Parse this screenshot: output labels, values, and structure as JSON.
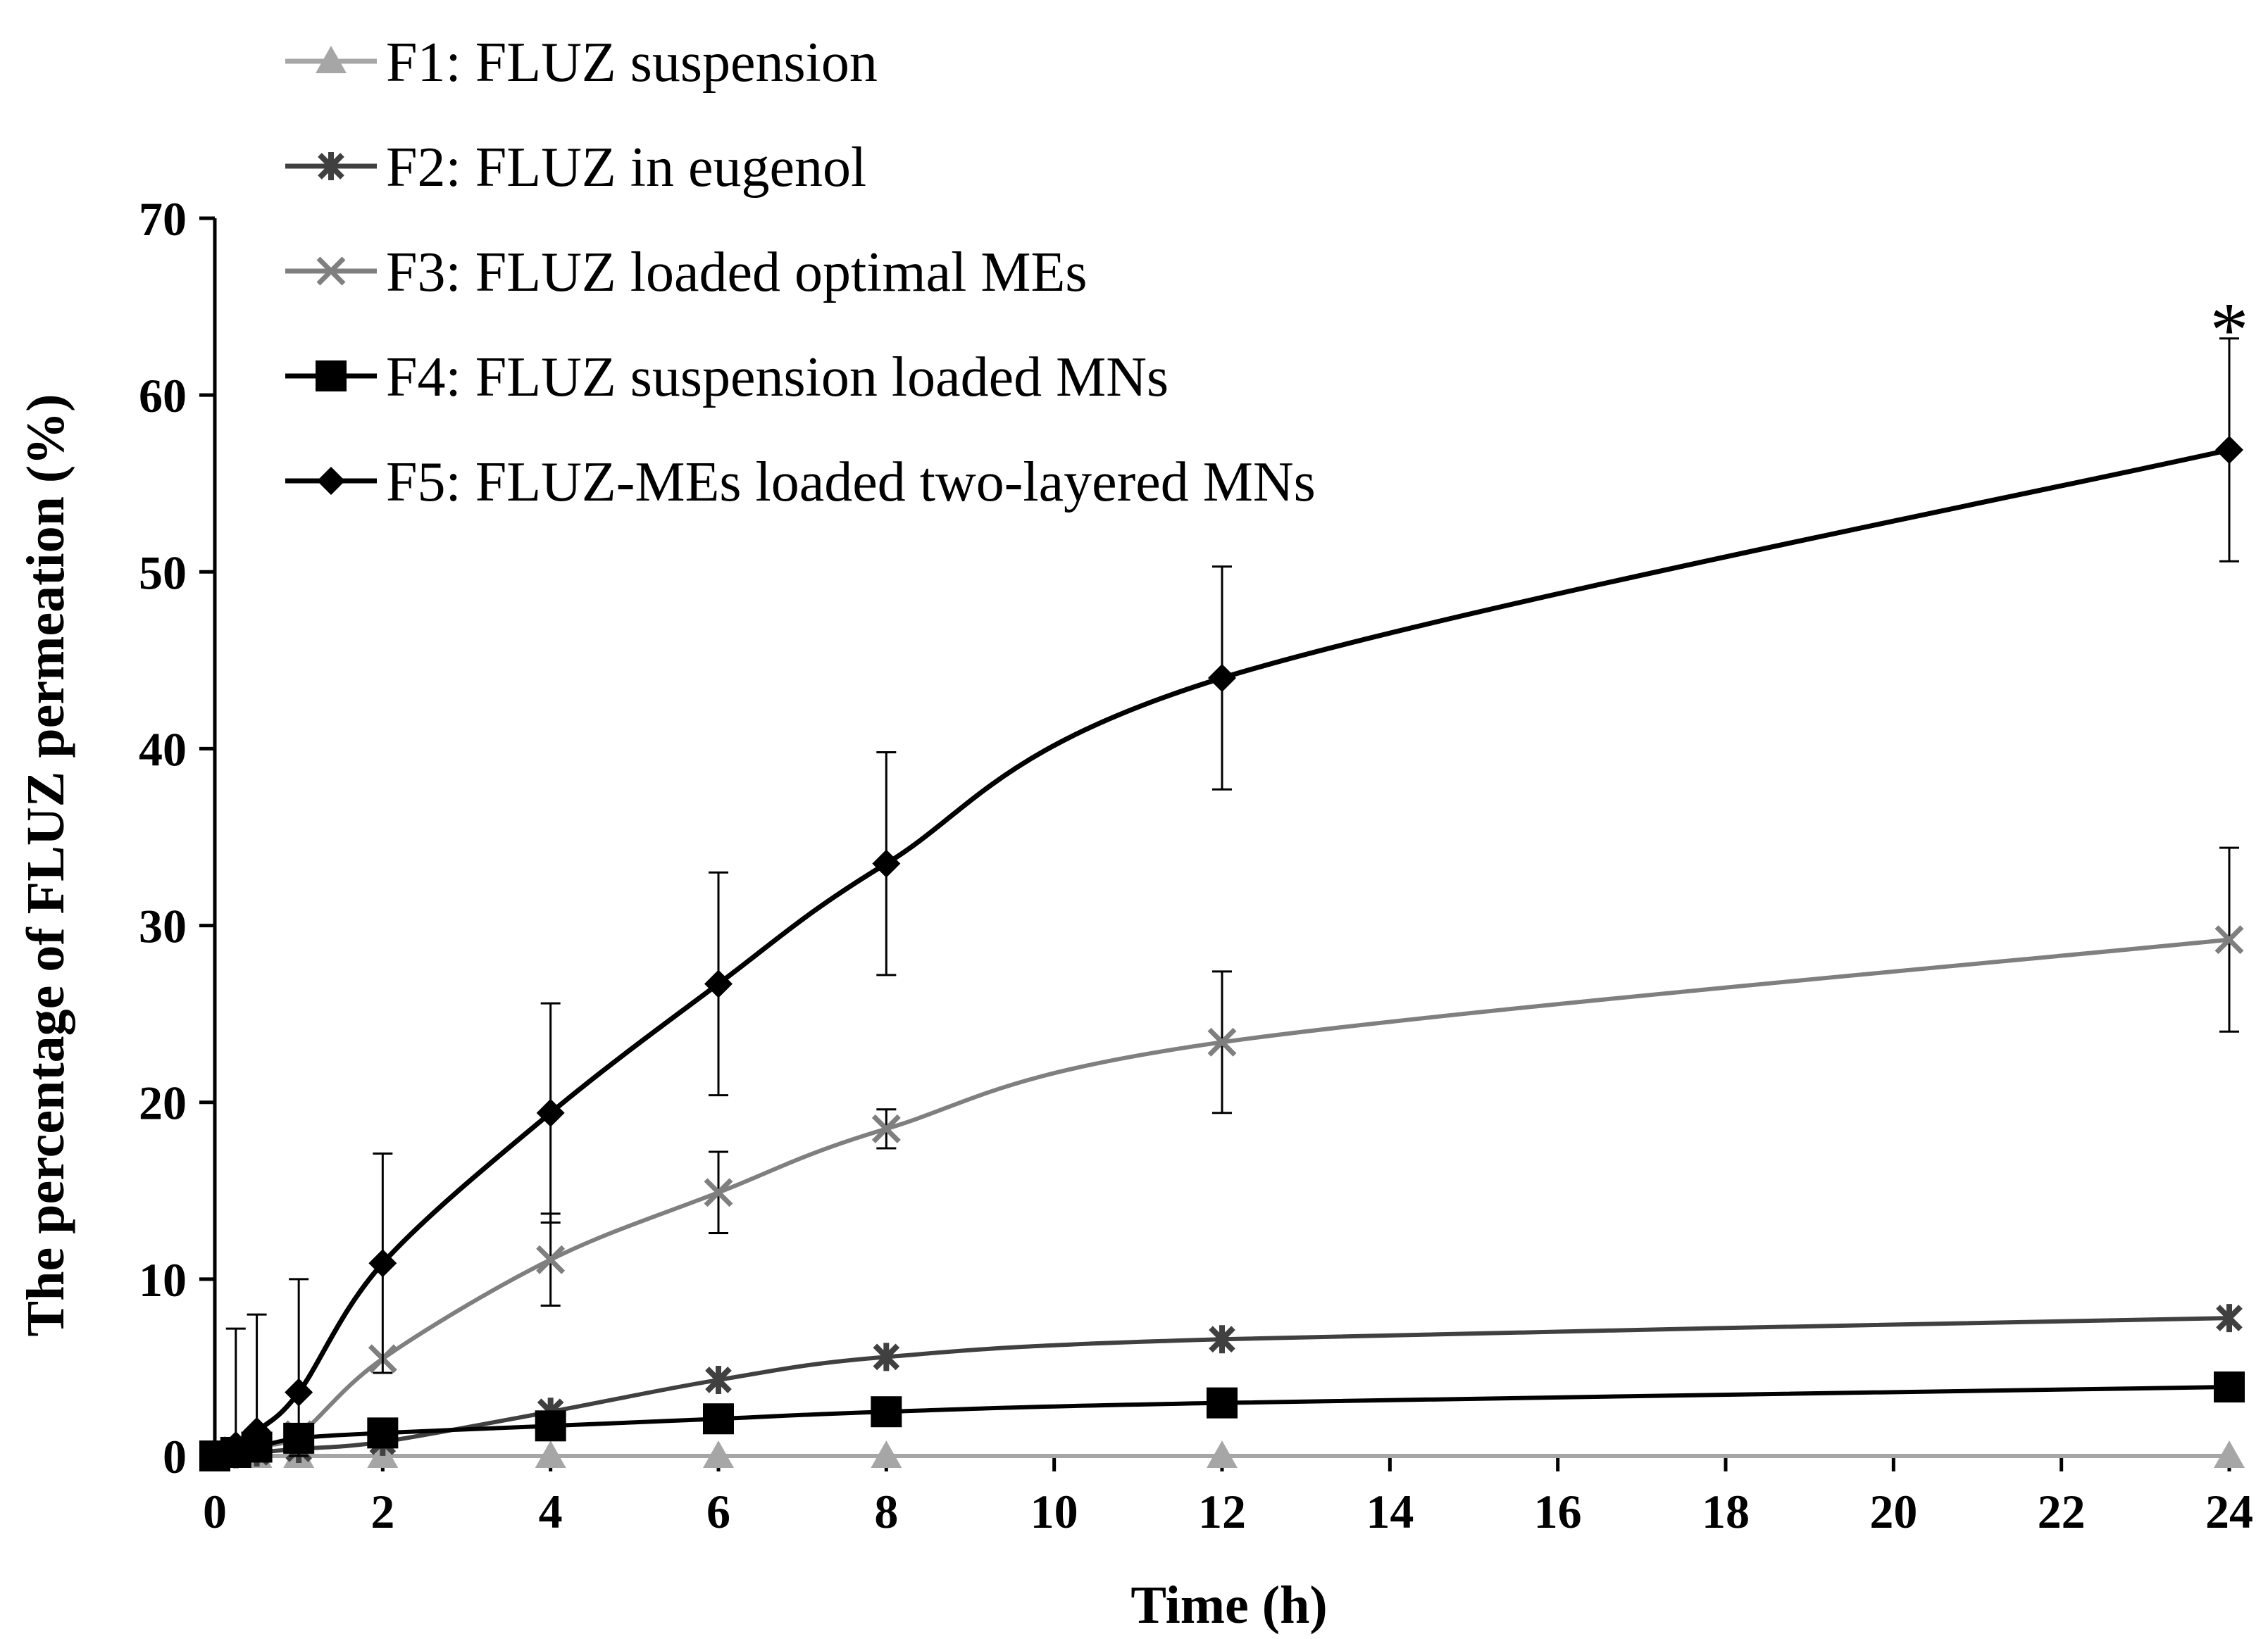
{
  "chart_data": {
    "type": "line",
    "xlabel": "Time (h)",
    "ylabel": "The percentage of FLUZ  permeation (%)",
    "xlim": [
      0,
      24
    ],
    "ylim": [
      0,
      70
    ],
    "xticks": [
      0,
      2,
      4,
      6,
      8,
      10,
      12,
      14,
      16,
      18,
      20,
      22,
      24
    ],
    "yticks": [
      0,
      10,
      20,
      30,
      40,
      50,
      60,
      70
    ],
    "grid": false,
    "legend_position": "top-left",
    "annotations": [
      {
        "text": "*",
        "x": 24,
        "y": 65
      }
    ],
    "series": [
      {
        "name": "F1: FLUZ suspension",
        "color": "#a6a6a6",
        "marker": "triangle",
        "x": [
          0,
          0.25,
          0.5,
          1,
          2,
          4,
          6,
          8,
          12,
          24
        ],
        "values": [
          0,
          0,
          0,
          0,
          0,
          0,
          0,
          0,
          0,
          0
        ],
        "errors": [
          0,
          0,
          0,
          0,
          0,
          0,
          0,
          0,
          0,
          0
        ]
      },
      {
        "name": "F2: FLUZ in eugenol",
        "color": "#404040",
        "marker": "star",
        "x": [
          0,
          0.25,
          0.5,
          1,
          2,
          4,
          6,
          8,
          12,
          24
        ],
        "values": [
          0,
          0.1,
          0.2,
          0.4,
          0.8,
          2.5,
          4.3,
          5.6,
          6.6,
          7.8
        ],
        "errors": [
          0,
          0,
          0,
          0,
          0,
          0,
          0,
          0,
          0,
          0
        ]
      },
      {
        "name": "F3: FLUZ loaded optimal MEs",
        "color": "#7f7f7f",
        "marker": "x",
        "x": [
          0,
          0.25,
          0.5,
          1,
          2,
          4,
          6,
          8,
          12,
          24
        ],
        "values": [
          0,
          0.3,
          0.6,
          1.2,
          5.5,
          11.1,
          14.9,
          18.5,
          23.4,
          29.2
        ],
        "errors": [
          0,
          0,
          0,
          0,
          0,
          2.6,
          2.3,
          1.1,
          4.0,
          5.2
        ]
      },
      {
        "name": "F4: FLUZ suspension loaded MNs",
        "color": "#000000",
        "marker": "square",
        "x": [
          0,
          0.25,
          0.5,
          1,
          2,
          4,
          6,
          8,
          12,
          24
        ],
        "values": [
          0,
          0.2,
          0.5,
          1.0,
          1.3,
          1.7,
          2.1,
          2.5,
          3.0,
          3.9
        ],
        "errors": [
          0,
          0,
          0,
          0,
          0,
          0,
          0,
          0,
          0,
          0
        ]
      },
      {
        "name": "F5: FLUZ-MEs loaded two-layered MNs",
        "color": "#000000",
        "marker": "diamond",
        "x": [
          0,
          0.25,
          0.5,
          1,
          2,
          4,
          6,
          8,
          12,
          24
        ],
        "values": [
          0,
          0.6,
          1.4,
          3.6,
          10.9,
          19.4,
          26.7,
          33.5,
          44.0,
          56.9
        ],
        "errors": [
          0,
          6.6,
          6.6,
          6.4,
          6.2,
          6.2,
          6.3,
          6.3,
          6.3,
          6.3
        ]
      }
    ]
  }
}
